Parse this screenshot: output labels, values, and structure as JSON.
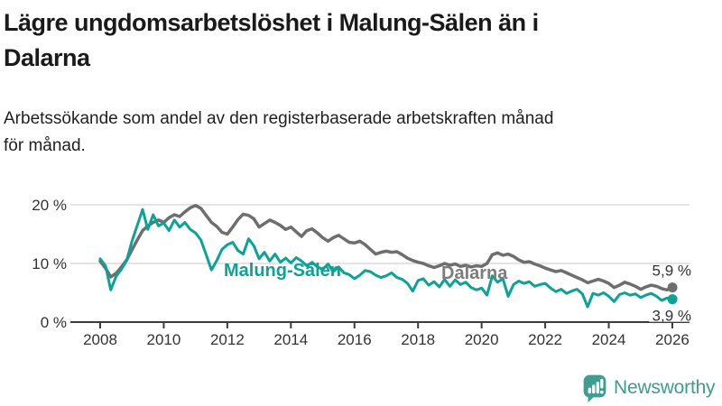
{
  "header": {
    "title_lines": [
      "Lägre ungdomsarbetslöshet i Malung-Sälen än i",
      "Dalarna"
    ],
    "subtitle_lines": [
      "Arbetssökande som andel av den registerbaserade arbetskraften månad",
      "för månad."
    ]
  },
  "colors": {
    "malung_salen": "#0ca295",
    "dalarna_line": "#6e6e6e",
    "dalarna_label": "#7d7d7d",
    "grid": "#dbdbdb",
    "axis": "#3c3c3c",
    "tick_text": "#333333",
    "logo_teal": "#3f9c90"
  },
  "chart_data": {
    "type": "line",
    "title": "Lägre ungdomsarbetslöshet i Malung-Sälen än i Dalarna",
    "subtitle": "Arbetssökande som andel av den registerbaserade arbetskraften månad för månad.",
    "x_start": 2008.0,
    "x_step_years": 0.1667,
    "x_unit": "year",
    "y_unit": "% av registerbaserad arbetskraft",
    "ylim": [
      0,
      21
    ],
    "xlim": [
      2007.1,
      2026.6
    ],
    "grid": "horizontal",
    "legend_position": "inline-labels",
    "y_ticks": [
      {
        "value": 20,
        "label": "20 %"
      },
      {
        "value": 10,
        "label": "10 %"
      },
      {
        "value": 0,
        "label": "0 %"
      }
    ],
    "x_ticks": [
      {
        "value": 2008,
        "label": "2008"
      },
      {
        "value": 2010,
        "label": "2010"
      },
      {
        "value": 2012,
        "label": "2012"
      },
      {
        "value": 2014,
        "label": "2014"
      },
      {
        "value": 2016,
        "label": "2016"
      },
      {
        "value": 2018,
        "label": "2018"
      },
      {
        "value": 2020,
        "label": "2020"
      },
      {
        "value": 2022,
        "label": "2022"
      },
      {
        "value": 2024,
        "label": "2024"
      },
      {
        "value": 2026,
        "label": "2026"
      }
    ],
    "series": [
      {
        "name": "Dalarna",
        "inline_label": "Dalarna",
        "end_label": "5,9 %",
        "end_value": 5.9,
        "values": [
          10.4,
          9.2,
          7.7,
          8.3,
          9.4,
          10.6,
          12.3,
          14.0,
          15.6,
          16.4,
          17.0,
          17.4,
          17.0,
          17.8,
          18.3,
          18.0,
          18.8,
          19.5,
          19.9,
          19.4,
          18.2,
          17.0,
          16.3,
          15.3,
          15.0,
          16.2,
          17.5,
          18.4,
          18.2,
          17.6,
          16.2,
          16.8,
          17.4,
          17.0,
          16.5,
          15.8,
          16.2,
          15.4,
          14.6,
          15.6,
          15.9,
          15.2,
          14.4,
          13.8,
          14.4,
          14.8,
          14.2,
          13.6,
          13.5,
          13.8,
          13.2,
          12.4,
          11.6,
          11.9,
          12.1,
          11.9,
          12.0,
          11.5,
          10.9,
          10.5,
          10.2,
          10.0,
          9.6,
          9.3,
          9.6,
          10.0,
          9.7,
          9.9,
          9.5,
          9.7,
          9.4,
          9.6,
          9.5,
          10.0,
          11.5,
          11.8,
          11.4,
          11.6,
          11.2,
          10.6,
          10.2,
          10.3,
          9.9,
          9.6,
          9.2,
          8.9,
          8.6,
          8.8,
          8.4,
          8.0,
          7.6,
          7.2,
          6.7,
          7.0,
          7.3,
          7.0,
          6.6,
          5.9,
          6.3,
          6.8,
          6.5,
          6.1,
          5.6,
          6.0,
          6.3,
          6.1,
          5.7,
          5.5,
          5.9
        ]
      },
      {
        "name": "Malung-Sälen",
        "inline_label": "Malung-Sälen",
        "end_label": "3,9 %",
        "end_value": 3.9,
        "values": [
          10.8,
          9.6,
          5.5,
          7.8,
          9.0,
          10.5,
          13.8,
          16.5,
          19.2,
          15.8,
          18.3,
          16.4,
          16.9,
          15.6,
          17.4,
          16.2,
          17.0,
          15.8,
          15.2,
          14.0,
          11.5,
          8.9,
          10.5,
          12.4,
          13.2,
          13.6,
          12.2,
          11.6,
          14.2,
          13.0,
          10.8,
          11.9,
          10.4,
          11.6,
          10.2,
          10.9,
          10.1,
          11.0,
          10.4,
          9.6,
          10.2,
          9.4,
          9.0,
          9.9,
          8.6,
          9.4,
          8.4,
          8.1,
          7.4,
          8.0,
          8.8,
          8.6,
          8.0,
          7.6,
          7.9,
          8.4,
          7.6,
          7.3,
          6.6,
          5.3,
          7.1,
          7.4,
          6.3,
          6.9,
          6.0,
          7.3,
          6.1,
          7.2,
          6.4,
          6.8,
          5.9,
          5.5,
          5.8,
          4.6,
          7.9,
          6.8,
          7.4,
          4.4,
          6.4,
          7.0,
          6.6,
          6.9,
          6.1,
          6.4,
          6.6,
          5.8,
          5.2,
          5.6,
          4.9,
          5.3,
          5.6,
          4.8,
          2.6,
          4.9,
          4.6,
          5.0,
          4.4,
          3.5,
          4.7,
          5.0,
          4.6,
          4.8,
          4.2,
          4.6,
          4.9,
          4.4,
          3.7,
          4.1,
          3.9
        ]
      }
    ]
  },
  "footer": {
    "brand": "Newsworthy"
  }
}
